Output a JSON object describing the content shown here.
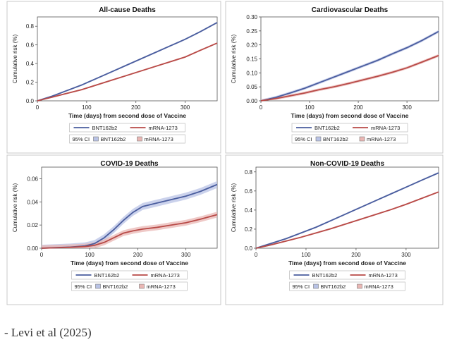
{
  "caption": "- Levi et al (2025)",
  "colors": {
    "bnt": "#4a5d9e",
    "mrna": "#b84a47",
    "bnt_band": "#b9c3e6",
    "mrna_band": "#eab7b4",
    "panel_border": "#c9c9c9",
    "grid": "#e6e6e6"
  },
  "chart_data": [
    {
      "type": "line",
      "title": "All-cause Deaths",
      "xlabel": "Time (days) from second dose of Vaccine",
      "ylabel": "Cumulative risk (%)",
      "xlim": [
        0,
        365
      ],
      "ylim": [
        0,
        0.9
      ],
      "xticks": [
        0,
        100,
        200,
        300
      ],
      "yticks": [
        "0.0",
        "0.2",
        "0.4",
        "0.6",
        "0.8"
      ],
      "x": [
        0,
        30,
        60,
        90,
        120,
        150,
        180,
        210,
        240,
        270,
        300,
        330,
        365
      ],
      "series": [
        {
          "name": "BNT162b2",
          "values": [
            0,
            0.05,
            0.11,
            0.17,
            0.24,
            0.31,
            0.38,
            0.45,
            0.52,
            0.59,
            0.66,
            0.74,
            0.84
          ],
          "ci": 0.008
        },
        {
          "name": "mRNA-1273",
          "values": [
            0,
            0.04,
            0.08,
            0.12,
            0.17,
            0.22,
            0.27,
            0.32,
            0.37,
            0.42,
            0.47,
            0.54,
            0.62
          ],
          "ci": 0.008
        }
      ],
      "legend": {
        "lines": [
          "BNT162b2",
          "mRNA-1273"
        ],
        "ci_label": "95% CI",
        "bands": [
          "BNT162b2",
          "mRNA-1273"
        ]
      }
    },
    {
      "type": "line",
      "title": "Cardiovascular Deaths",
      "xlabel": "Time (days) from second dose of Vaccine",
      "ylabel": "Cumulative risk (%)",
      "xlim": [
        0,
        365
      ],
      "ylim": [
        0,
        0.3
      ],
      "xticks": [
        0,
        100,
        200,
        300
      ],
      "yticks": [
        "0.00",
        "0.05",
        "0.10",
        "0.15",
        "0.20",
        "0.25",
        "0.30"
      ],
      "x": [
        0,
        30,
        60,
        90,
        120,
        150,
        180,
        210,
        240,
        270,
        300,
        330,
        365
      ],
      "series": [
        {
          "name": "BNT162b2",
          "values": [
            0,
            0.012,
            0.028,
            0.045,
            0.065,
            0.085,
            0.105,
            0.125,
            0.145,
            0.168,
            0.19,
            0.215,
            0.248
          ],
          "ci": 0.005
        },
        {
          "name": "mRNA-1273",
          "values": [
            0,
            0.008,
            0.018,
            0.028,
            0.04,
            0.05,
            0.062,
            0.075,
            0.088,
            0.102,
            0.118,
            0.138,
            0.162
          ],
          "ci": 0.005
        }
      ],
      "legend": {
        "lines": [
          "BNT162b2",
          "mRNA-1273"
        ],
        "ci_label": "95% CI",
        "bands": [
          "BNT162b2",
          "mRNA-1273"
        ]
      }
    },
    {
      "type": "line",
      "title": "COVID-19 Deaths",
      "xlabel": "Time (days) from second dose of Vaccine",
      "ylabel": "Cumulative risk (%)",
      "xlim": [
        0,
        365
      ],
      "ylim": [
        0,
        0.07
      ],
      "xticks": [
        0,
        100,
        200,
        300
      ],
      "yticks": [
        "0.00",
        "0.02",
        "0.04",
        "0.06"
      ],
      "x": [
        0,
        30,
        60,
        90,
        110,
        130,
        150,
        170,
        190,
        210,
        240,
        270,
        300,
        330,
        365
      ],
      "series": [
        {
          "name": "BNT162b2",
          "values": [
            0,
            0.0005,
            0.001,
            0.002,
            0.004,
            0.009,
            0.016,
            0.024,
            0.031,
            0.036,
            0.039,
            0.042,
            0.045,
            0.049,
            0.055
          ],
          "ci": 0.003
        },
        {
          "name": "mRNA-1273",
          "values": [
            0,
            0.0004,
            0.0008,
            0.0014,
            0.0025,
            0.005,
            0.009,
            0.013,
            0.015,
            0.0165,
            0.018,
            0.02,
            0.022,
            0.025,
            0.029
          ],
          "ci": 0.0025
        }
      ],
      "legend": {
        "lines": [
          "BNT162b2",
          "mRNA-1273"
        ],
        "ci_label": "95% CI",
        "bands": [
          "BNT162b2",
          "mRNA-1273"
        ]
      }
    },
    {
      "type": "line",
      "title": "Non-COVID-19 Deaths",
      "xlabel": "Time (days) from second dose of Vaccine",
      "ylabel": "Cumulative risk (%)",
      "xlim": [
        0,
        365
      ],
      "ylim": [
        0,
        0.85
      ],
      "xticks": [
        0,
        100,
        200,
        300
      ],
      "yticks": [
        "0.0",
        "0.2",
        "0.4",
        "0.6",
        "0.8"
      ],
      "x": [
        0,
        30,
        60,
        90,
        120,
        150,
        180,
        210,
        240,
        270,
        300,
        330,
        365
      ],
      "series": [
        {
          "name": "BNT162b2",
          "values": [
            0,
            0.05,
            0.1,
            0.16,
            0.22,
            0.29,
            0.36,
            0.43,
            0.5,
            0.57,
            0.64,
            0.71,
            0.79
          ],
          "ci": 0.008
        },
        {
          "name": "mRNA-1273",
          "values": [
            0,
            0.035,
            0.075,
            0.115,
            0.16,
            0.205,
            0.255,
            0.305,
            0.355,
            0.405,
            0.46,
            0.52,
            0.59
          ],
          "ci": 0.008
        }
      ],
      "legend": {
        "lines": [
          "BNT162b2",
          "mRNA-1273"
        ],
        "ci_label": "95% CI",
        "bands": [
          "BNT162b2",
          "mRNA-1273"
        ]
      }
    }
  ]
}
